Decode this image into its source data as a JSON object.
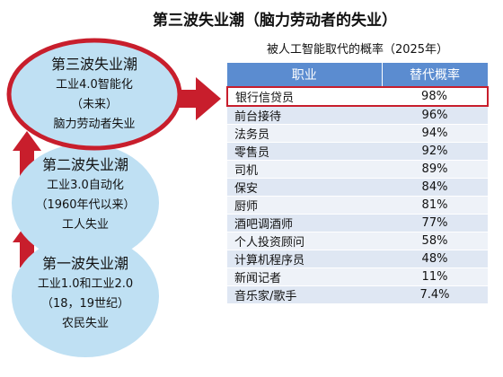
{
  "title": "第三波失业潮（脑力劳动者的失业）",
  "waves": [
    {
      "title": "第三波失业潮",
      "line1": "工业4.0智能化",
      "line2": "（未来）",
      "line3": "脑力劳动者失业"
    },
    {
      "title": "第二波失业潮",
      "line1": "工业3.0自动化",
      "line2": "（1960年代以来）",
      "line3": "工人失业"
    },
    {
      "title": "第一波失业潮",
      "line1": "工业1.0和工业2.0",
      "line2": "（18，19世纪）",
      "line3": "农民失业"
    }
  ],
  "table": {
    "caption": "被人工智能取代的概率（2025年）",
    "headers": [
      "职业",
      "替代概率"
    ],
    "rows": [
      {
        "job": "银行信贷员",
        "rate": "98%"
      },
      {
        "job": "前台接待",
        "rate": "96%"
      },
      {
        "job": "法务员",
        "rate": "94%"
      },
      {
        "job": "零售员",
        "rate": "92%"
      },
      {
        "job": "司机",
        "rate": "89%"
      },
      {
        "job": "保安",
        "rate": "84%"
      },
      {
        "job": "厨师",
        "rate": "81%"
      },
      {
        "job": "酒吧调酒师",
        "rate": "77%"
      },
      {
        "job": "个人投资顾问",
        "rate": "58%"
      },
      {
        "job": "计算机程序员",
        "rate": "48%"
      },
      {
        "job": "新闻记者",
        "rate": "11%"
      },
      {
        "job": "音乐家/歌手",
        "rate": "7.4%"
      }
    ]
  },
  "colors": {
    "ellipse_fill": "#bfe0f3",
    "highlight_red": "#c81e2c",
    "header_blue": "#5b8cd0"
  }
}
